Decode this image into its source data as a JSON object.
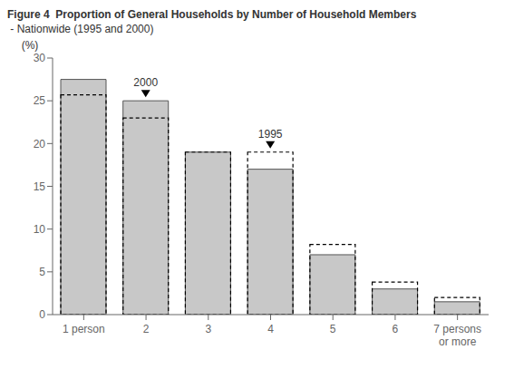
{
  "chart_data": {
    "type": "bar",
    "title": "Figure 4  Proportion of General Households by Number of Household Members",
    "subtitle": " - Nationwide (1995 and 2000)",
    "ylabel": "(%)",
    "categories": [
      "1 person",
      "2",
      "3",
      "4",
      "5",
      "6",
      "7 persons\nor more"
    ],
    "series": [
      {
        "name": "2000",
        "color": "#c8c8c8",
        "values": [
          27.5,
          25.0,
          19.0,
          17.0,
          7.0,
          3.0,
          1.5
        ]
      },
      {
        "name": "1995",
        "color": "#000000",
        "line_style": "dashed",
        "values": [
          25.7,
          23.0,
          19.0,
          19.0,
          8.2,
          3.8,
          2.0
        ]
      }
    ],
    "annotations": [
      {
        "series": "2000",
        "category": "2"
      },
      {
        "series": "1995",
        "category": "4"
      }
    ],
    "ylim": [
      0,
      30
    ],
    "yticks": [
      0,
      5,
      10,
      15,
      20,
      25,
      30
    ],
    "grid": false
  }
}
